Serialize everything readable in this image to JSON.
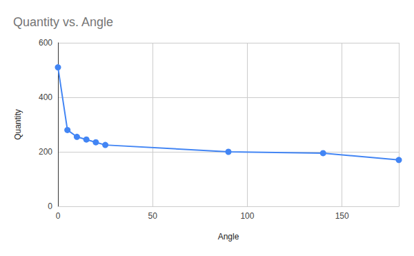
{
  "chart_data": {
    "type": "line",
    "title": "Quantity vs. Angle",
    "x_label": "Angle",
    "y_label": "Quantity",
    "x": [
      0,
      5,
      10,
      15,
      20,
      25,
      90,
      140,
      180
    ],
    "values": [
      510,
      280,
      255,
      245,
      235,
      225,
      200,
      195,
      170
    ],
    "color": "#4285f4",
    "marker": "circle",
    "line_style": "solid",
    "xlim": [
      0,
      180
    ],
    "xticks": [
      0,
      50,
      100,
      150
    ],
    "ylim": [
      0,
      600
    ],
    "yticks": [
      0,
      200,
      400,
      600
    ],
    "grid": true
  }
}
